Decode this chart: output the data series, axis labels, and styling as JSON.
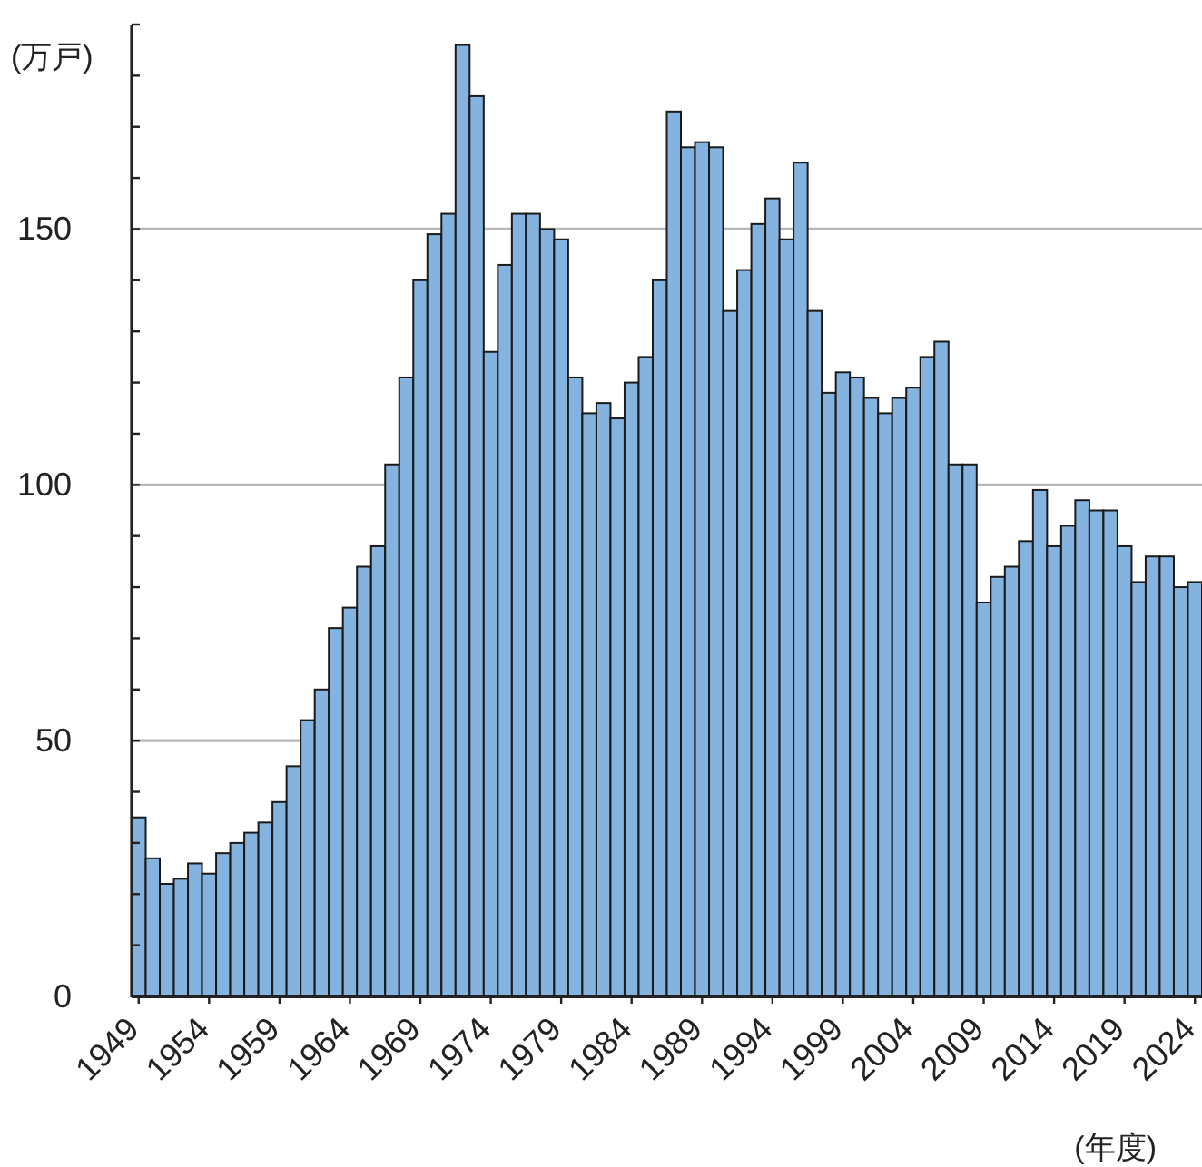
{
  "chart_data": {
    "type": "bar",
    "xlabel": "(年度)",
    "ylabel": "(万戸)",
    "categories": [
      "1949",
      null,
      null,
      null,
      null,
      "1954",
      null,
      null,
      null,
      null,
      "1959",
      null,
      null,
      null,
      null,
      "1964",
      null,
      null,
      null,
      null,
      "1969",
      null,
      null,
      null,
      null,
      "1974",
      null,
      null,
      null,
      null,
      "1979",
      null,
      null,
      null,
      null,
      "1984",
      null,
      null,
      null,
      null,
      "1989",
      null,
      null,
      null,
      null,
      "1994",
      null,
      null,
      null,
      null,
      "1999",
      null,
      null,
      null,
      null,
      "2004",
      null,
      null,
      null,
      null,
      "2009",
      null,
      null,
      null,
      null,
      "2014",
      null,
      null,
      null,
      null,
      "2019",
      null,
      null,
      null,
      null,
      "2024"
    ],
    "values": [
      35,
      27,
      22,
      23,
      26,
      24,
      28,
      30,
      32,
      34,
      38,
      45,
      54,
      60,
      72,
      76,
      84,
      88,
      104,
      121,
      140,
      149,
      153,
      186,
      176,
      126,
      143,
      153,
      153,
      150,
      148,
      121,
      114,
      116,
      113,
      120,
      125,
      140,
      173,
      166,
      167,
      166,
      134,
      142,
      151,
      156,
      148,
      163,
      134,
      118,
      122,
      121,
      117,
      114,
      117,
      119,
      125,
      128,
      104,
      104,
      77,
      82,
      84,
      89,
      99,
      88,
      92,
      97,
      95,
      95,
      88,
      81,
      86,
      86,
      80,
      81
    ],
    "color": "#85b3df",
    "ylim": [
      0,
      190
    ],
    "yticks": [
      0,
      {
        "value": 10,
        "label": null
      },
      {
        "value": 20,
        "label": null
      },
      {
        "value": 30,
        "label": null
      },
      {
        "value": 40,
        "label": null
      },
      50,
      {
        "value": 60,
        "label": null
      },
      {
        "value": 70,
        "label": null
      },
      {
        "value": 80,
        "label": null
      },
      {
        "value": 90,
        "label": null
      },
      100,
      {
        "value": 110,
        "label": null
      },
      {
        "value": 120,
        "label": null
      },
      {
        "value": 130,
        "label": null
      },
      {
        "value": 140,
        "label": null
      },
      150,
      {
        "value": 160,
        "label": null
      },
      {
        "value": 170,
        "label": null
      },
      {
        "value": 180,
        "label": null
      },
      {
        "value": 190,
        "label": null
      }
    ],
    "grid": "y"
  }
}
